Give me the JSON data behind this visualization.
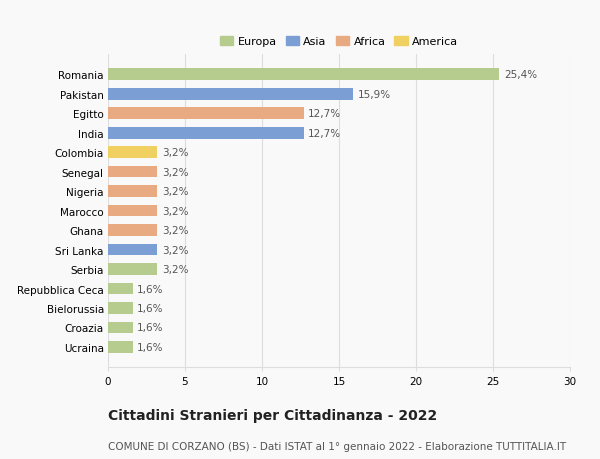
{
  "countries": [
    "Romania",
    "Pakistan",
    "Egitto",
    "India",
    "Colombia",
    "Senegal",
    "Nigeria",
    "Marocco",
    "Ghana",
    "Sri Lanka",
    "Serbia",
    "Repubblica Ceca",
    "Bielorussia",
    "Croazia",
    "Ucraina"
  ],
  "values": [
    25.4,
    15.9,
    12.7,
    12.7,
    3.2,
    3.2,
    3.2,
    3.2,
    3.2,
    3.2,
    3.2,
    1.6,
    1.6,
    1.6,
    1.6
  ],
  "labels": [
    "25,4%",
    "15,9%",
    "12,7%",
    "12,7%",
    "3,2%",
    "3,2%",
    "3,2%",
    "3,2%",
    "3,2%",
    "3,2%",
    "3,2%",
    "1,6%",
    "1,6%",
    "1,6%",
    "1,6%"
  ],
  "continents": [
    "Europa",
    "Asia",
    "Africa",
    "Asia",
    "America",
    "Africa",
    "Africa",
    "Africa",
    "Africa",
    "Asia",
    "Europa",
    "Europa",
    "Europa",
    "Europa",
    "Europa"
  ],
  "continent_colors": {
    "Europa": "#b5cc8e",
    "Asia": "#7b9fd4",
    "Africa": "#e8aa80",
    "America": "#f0d060"
  },
  "legend_order": [
    "Europa",
    "Asia",
    "Africa",
    "America"
  ],
  "xlim": [
    0,
    30
  ],
  "xticks": [
    0,
    5,
    10,
    15,
    20,
    25,
    30
  ],
  "title": "Cittadini Stranieri per Cittadinanza - 2022",
  "subtitle": "COMUNE DI CORZANO (BS) - Dati ISTAT al 1° gennaio 2022 - Elaborazione TUTTITALIA.IT",
  "background_color": "#f9f9f9",
  "bar_height": 0.6,
  "grid_color": "#dddddd",
  "label_fontsize": 7.5,
  "ytick_fontsize": 7.5,
  "xtick_fontsize": 7.5,
  "value_fontsize": 7.5,
  "title_fontsize": 10,
  "subtitle_fontsize": 7.5,
  "legend_fontsize": 8
}
